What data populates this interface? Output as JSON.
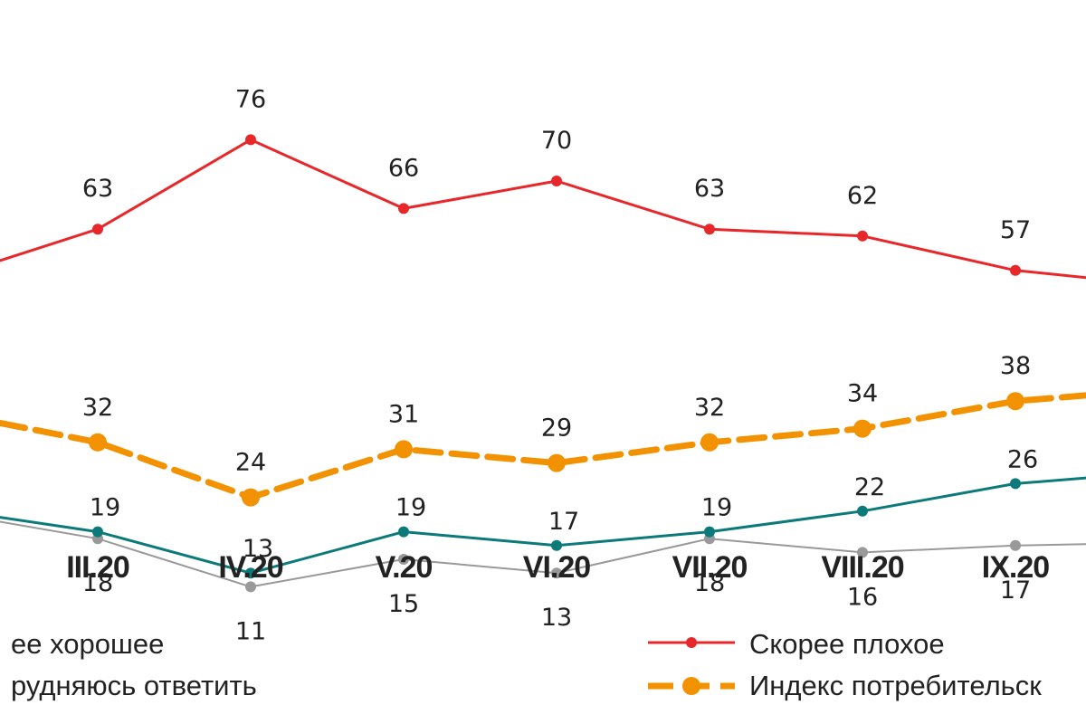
{
  "chart_data": {
    "type": "line",
    "categories": [
      "III.20",
      "IV.20",
      "V.20",
      "VI.20",
      "VII.20",
      "VIII.20",
      "IX.20"
    ],
    "colors": {
      "good": "#0c7a7a",
      "bad": "#e8272a",
      "undecided": "#999999",
      "index": "#f39200"
    },
    "series": [
      {
        "name": "Скорее плохое",
        "key": "bad",
        "values": [
          63,
          76,
          66,
          70,
          63,
          62,
          57
        ],
        "labels": [
          "63",
          "76",
          "66",
          "70",
          "63",
          "62",
          "57"
        ]
      },
      {
        "name": "Индекс потребительск",
        "key": "index",
        "values": [
          32,
          24,
          31,
          29,
          32,
          34,
          38
        ],
        "labels": [
          "32",
          "24",
          "31",
          "29",
          "32",
          "34",
          "38"
        ]
      },
      {
        "name": "ее хорошее",
        "key": "good",
        "values": [
          19,
          13,
          19,
          17,
          19,
          22,
          26
        ],
        "labels": [
          "19",
          "13",
          "19",
          "17",
          "19",
          "22",
          "26"
        ]
      },
      {
        "name": "рудняюсь ответить",
        "key": "undecided",
        "values": [
          18,
          11,
          15,
          13,
          18,
          16,
          17
        ],
        "labels": [
          "18",
          "11",
          "15",
          "13",
          "18",
          "16",
          "17"
        ]
      }
    ]
  }
}
